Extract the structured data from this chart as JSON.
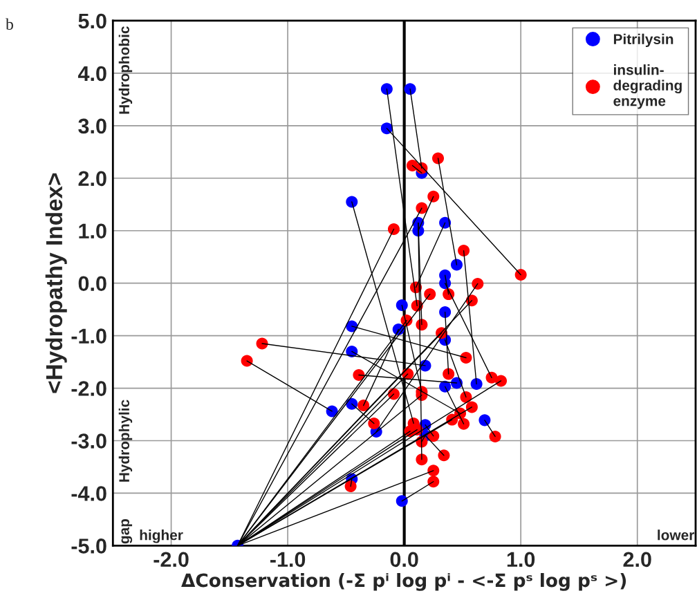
{
  "chart_data": {
    "type": "scatter",
    "title": "b",
    "xlabel": "ΔConservation (-Σ pⁱ log pⁱ - <-Σ pˢ log pˢ >)",
    "ylabel": "<Hydropathy Index>",
    "annotations": [
      "Hydrophobic",
      "Hydrophylic",
      "gap",
      "higher",
      "lower"
    ],
    "xlim": [
      -2.5,
      2.5
    ],
    "ylim": [
      -5,
      5
    ],
    "xticks": [
      {
        "value": -2,
        "label": "-2.0"
      },
      {
        "value": -1,
        "label": "-1.0"
      },
      {
        "value": 0,
        "label": "0.0"
      },
      {
        "value": 1,
        "label": "1.0"
      },
      {
        "value": 2,
        "label": "2.0"
      }
    ],
    "yticks": [
      {
        "value": -5,
        "label": "-5.0"
      },
      {
        "value": -4,
        "label": "-4.0"
      },
      {
        "value": -3,
        "label": "-3.0"
      },
      {
        "value": -2,
        "label": "-2.0"
      },
      {
        "value": -1,
        "label": "-1.0"
      },
      {
        "value": 0,
        "label": "0.0"
      },
      {
        "value": 1,
        "label": "1.0"
      },
      {
        "value": 2,
        "label": "2.0"
      },
      {
        "value": 3,
        "label": "3.0"
      },
      {
        "value": 4,
        "label": "4.0"
      },
      {
        "value": 5,
        "label": "5.0"
      }
    ],
    "grid": true,
    "legend": "top right",
    "ref_lines": [
      {
        "axis": "x",
        "value": 0,
        "color": "#000000"
      }
    ],
    "series": [
      {
        "type": "line",
        "color": "#000000",
        "x": [
          0.15,
          0.07
        ],
        "values": [
          2.1,
          2.24
        ]
      },
      {
        "type": "line",
        "color": "#000000",
        "x": [
          0.05,
          0.15
        ],
        "values": [
          3.7,
          2.19
        ]
      },
      {
        "type": "line",
        "color": "#000000",
        "x": [
          0.45,
          0.29
        ],
        "values": [
          0.35,
          2.38
        ]
      },
      {
        "type": "line",
        "color": "#000000",
        "x": [
          0.12,
          0.25
        ],
        "values": [
          1.0,
          1.65
        ]
      },
      {
        "type": "line",
        "color": "#000000",
        "x": [
          -1.43,
          0.15
        ],
        "values": [
          -5.0,
          1.43
        ]
      },
      {
        "type": "line",
        "color": "#000000",
        "x": [
          -1.43,
          -0.09
        ],
        "values": [
          -5.0,
          1.03
        ]
      },
      {
        "type": "line",
        "color": "#000000",
        "x": [
          0.62,
          0.51
        ],
        "values": [
          -1.92,
          0.62
        ]
      },
      {
        "type": "line",
        "color": "#000000",
        "x": [
          -0.15,
          1.0
        ],
        "values": [
          2.95,
          0.16
        ]
      },
      {
        "type": "line",
        "color": "#000000",
        "x": [
          -0.24,
          0.63
        ],
        "values": [
          -2.83,
          -0.01
        ]
      },
      {
        "type": "line",
        "color": "#000000",
        "x": [
          0.35,
          0.1
        ],
        "values": [
          1.15,
          -0.08
        ]
      },
      {
        "type": "line",
        "color": "#000000",
        "x": [
          0.35,
          0.38
        ],
        "values": [
          0.15,
          -0.21
        ]
      },
      {
        "type": "line",
        "color": "#000000",
        "x": [
          -1.43,
          0.22
        ],
        "values": [
          -5.0,
          -0.21
        ]
      },
      {
        "type": "line",
        "color": "#000000",
        "x": [
          -1.43,
          0.58
        ],
        "values": [
          -5.0,
          -0.33
        ]
      },
      {
        "type": "line",
        "color": "#000000",
        "x": [
          -0.15,
          0.11
        ],
        "values": [
          3.7,
          -0.43
        ]
      },
      {
        "type": "line",
        "color": "#000000",
        "x": [
          0.12,
          0.15
        ],
        "values": [
          1.15,
          -0.79
        ]
      },
      {
        "type": "line",
        "color": "#000000",
        "x": [
          -1.43,
          0.02
        ],
        "values": [
          -5.0,
          -0.71
        ]
      },
      {
        "type": "line",
        "color": "#000000",
        "x": [
          -1.43,
          0.32
        ],
        "values": [
          -5.0,
          -0.95
        ]
      },
      {
        "type": "line",
        "color": "#000000",
        "x": [
          -0.45,
          0.53
        ],
        "values": [
          -0.82,
          -1.42
        ]
      },
      {
        "type": "line",
        "color": "#000000",
        "x": [
          0.18,
          -1.22
        ],
        "values": [
          -1.57,
          -1.15
        ]
      },
      {
        "type": "line",
        "color": "#000000",
        "x": [
          -0.62,
          -1.35
        ],
        "values": [
          -2.44,
          -1.48
        ]
      },
      {
        "type": "line",
        "color": "#000000",
        "x": [
          0.45,
          -0.39
        ],
        "values": [
          -1.9,
          -1.75
        ]
      },
      {
        "type": "line",
        "color": "#000000",
        "x": [
          -1.43,
          0.03
        ],
        "values": [
          -5.0,
          -1.73
        ]
      },
      {
        "type": "line",
        "color": "#000000",
        "x": [
          0.35,
          0.38
        ],
        "values": [
          -0.55,
          -1.73
        ]
      },
      {
        "type": "line",
        "color": "#000000",
        "x": [
          0.35,
          0.75
        ],
        "values": [
          0.0,
          -1.8
        ]
      },
      {
        "type": "line",
        "color": "#000000",
        "x": [
          -1.43,
          0.83
        ],
        "values": [
          -5.0,
          -1.86
        ]
      },
      {
        "type": "line",
        "color": "#000000",
        "x": [
          -0.02,
          0.15
        ],
        "values": [
          -0.42,
          -2.07
        ]
      },
      {
        "type": "line",
        "color": "#000000",
        "x": [
          -1.43,
          0.15
        ],
        "values": [
          -5.0,
          -2.13
        ]
      },
      {
        "type": "line",
        "color": "#000000",
        "x": [
          -1.43,
          -0.09
        ],
        "values": [
          -5.0,
          -2.11
        ]
      },
      {
        "type": "line",
        "color": "#000000",
        "x": [
          0.35,
          0.53
        ],
        "values": [
          -1.08,
          -2.17
        ]
      },
      {
        "type": "line",
        "color": "#000000",
        "x": [
          -0.05,
          -0.35
        ],
        "values": [
          -0.88,
          -2.33
        ]
      },
      {
        "type": "line",
        "color": "#000000",
        "x": [
          -1.43,
          0.58
        ],
        "values": [
          -5.0,
          -2.36
        ]
      },
      {
        "type": "line",
        "color": "#000000",
        "x": [
          -0.45,
          0.48
        ],
        "values": [
          -1.3,
          -2.48
        ]
      },
      {
        "type": "line",
        "color": "#000000",
        "x": [
          -0.45,
          -0.26
        ],
        "values": [
          -2.3,
          -2.67
        ]
      },
      {
        "type": "line",
        "color": "#000000",
        "x": [
          -1.43,
          0.41
        ],
        "values": [
          -5.0,
          -2.6
        ]
      },
      {
        "type": "line",
        "color": "#000000",
        "x": [
          0.35,
          0.51
        ],
        "values": [
          -1.97,
          -2.68
        ]
      },
      {
        "type": "line",
        "color": "#000000",
        "x": [
          -0.45,
          0.08
        ],
        "values": [
          1.55,
          -2.67
        ]
      },
      {
        "type": "line",
        "color": "#000000",
        "x": [
          -1.43,
          0.05
        ],
        "values": [
          -5.0,
          -2.82
        ]
      },
      {
        "type": "line",
        "color": "#000000",
        "x": [
          -1.43,
          0.11
        ],
        "values": [
          -5.0,
          -2.79
        ]
      },
      {
        "type": "line",
        "color": "#000000",
        "x": [
          0.18,
          0.25
        ],
        "values": [
          -2.7,
          -2.91
        ]
      },
      {
        "type": "line",
        "color": "#000000",
        "x": [
          0.69,
          0.78
        ],
        "values": [
          -2.61,
          -2.92
        ]
      },
      {
        "type": "line",
        "color": "#000000",
        "x": [
          0.18,
          0.15
        ],
        "values": [
          -2.9,
          -3.02
        ]
      },
      {
        "type": "line",
        "color": "#000000",
        "x": [
          0.18,
          0.34
        ],
        "values": [
          -2.9,
          -3.28
        ]
      },
      {
        "type": "line",
        "color": "#000000",
        "x": [
          0.12,
          0.15
        ],
        "values": [
          1.15,
          -3.36
        ]
      },
      {
        "type": "line",
        "color": "#000000",
        "x": [
          -1.43,
          0.25
        ],
        "values": [
          -5.0,
          -3.57
        ]
      },
      {
        "type": "line",
        "color": "#000000",
        "x": [
          -0.02,
          0.25
        ],
        "values": [
          -4.15,
          -3.78
        ]
      },
      {
        "type": "line",
        "color": "#000000",
        "x": [
          -0.45,
          -0.46
        ],
        "values": [
          -3.73,
          -3.87
        ]
      },
      {
        "name": "Pitrilysin",
        "color": "#0000ff",
        "marker": "circle",
        "x": [
          -0.15,
          0.05,
          -0.15,
          0.15,
          -0.45,
          0.12,
          0.12,
          0.35,
          0.45,
          0.35,
          0.35,
          -0.02,
          0.35,
          -0.45,
          -0.05,
          0.35,
          -0.45,
          0.18,
          0.45,
          0.62,
          0.35,
          -0.45,
          -0.62,
          -0.24,
          0.69,
          0.18,
          0.18,
          -0.45,
          -0.02,
          -1.43
        ],
        "values": [
          3.7,
          3.7,
          2.95,
          2.1,
          1.55,
          1.15,
          1.0,
          1.15,
          0.35,
          0.15,
          0.0,
          -0.42,
          -0.55,
          -0.82,
          -0.88,
          -1.08,
          -1.3,
          -1.57,
          -1.9,
          -1.92,
          -1.97,
          -2.3,
          -2.44,
          -2.83,
          -2.61,
          -2.7,
          -2.9,
          -3.73,
          -4.15,
          -5.0
        ]
      },
      {
        "name": "insulin-\ndegrading\nenzyme",
        "color": "#ff0000",
        "marker": "circle",
        "x": [
          0.07,
          0.15,
          0.29,
          0.25,
          0.15,
          -0.09,
          0.51,
          1.0,
          0.63,
          0.1,
          0.38,
          0.22,
          0.58,
          0.11,
          0.15,
          0.02,
          0.32,
          0.53,
          -1.22,
          -1.35,
          -0.39,
          0.03,
          0.38,
          0.75,
          0.83,
          0.15,
          0.15,
          -0.09,
          0.53,
          -0.35,
          0.58,
          0.48,
          -0.26,
          0.41,
          0.51,
          0.08,
          0.05,
          0.11,
          0.25,
          0.78,
          0.15,
          0.34,
          0.15,
          0.25,
          0.25,
          -0.46
        ],
        "values": [
          2.24,
          2.19,
          2.38,
          1.65,
          1.43,
          1.03,
          0.62,
          0.16,
          -0.01,
          -0.08,
          -0.21,
          -0.21,
          -0.33,
          -0.43,
          -0.79,
          -0.71,
          -0.95,
          -1.42,
          -1.15,
          -1.48,
          -1.75,
          -1.73,
          -1.73,
          -1.8,
          -1.86,
          -2.07,
          -2.13,
          -2.11,
          -2.17,
          -2.33,
          -2.36,
          -2.48,
          -2.67,
          -2.6,
          -2.68,
          -2.67,
          -2.82,
          -2.79,
          -2.91,
          -2.92,
          -3.02,
          -3.28,
          -3.36,
          -3.57,
          -3.78,
          -3.87
        ]
      }
    ]
  }
}
